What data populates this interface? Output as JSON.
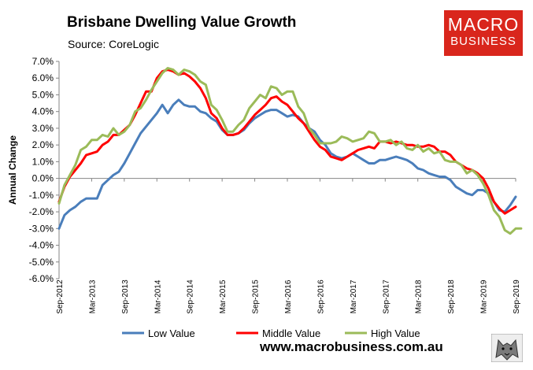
{
  "header": {
    "title": "Brisbane Dwelling Value Growth",
    "source": "Source: CoreLogic"
  },
  "logo": {
    "line1": "MACRO",
    "line2": "BUSINESS"
  },
  "footer": {
    "website": "www.macrobusiness.com.au"
  },
  "colors": {
    "low": "#4a7ebb",
    "middle": "#ff0000",
    "high": "#9bbb59"
  },
  "chart_data": {
    "type": "line",
    "title": "Brisbane Dwelling Value Growth",
    "ylabel": "Annual Change",
    "xlabel": "",
    "ylim": [
      -6,
      7
    ],
    "yticks": [
      -6,
      -5,
      -4,
      -3,
      -2,
      -1,
      0,
      1,
      2,
      3,
      4,
      5,
      6,
      7
    ],
    "ytick_labels": [
      "-6.0%",
      "-5.0%",
      "-4.0%",
      "-3.0%",
      "-2.0%",
      "-1.0%",
      "0.0%",
      "1.0%",
      "2.0%",
      "3.0%",
      "4.0%",
      "5.0%",
      "6.0%",
      "7.0%"
    ],
    "x_tick_labels": [
      "Sep-2012",
      "Mar-2013",
      "Sep-2013",
      "Mar-2014",
      "Sep-2014",
      "Mar-2015",
      "Sep-2015",
      "Mar-2016",
      "Sep-2016",
      "Mar-2017",
      "Sep-2017",
      "Mar-2018",
      "Sep-2018",
      "Mar-2019",
      "Sep-2019"
    ],
    "x_tick_positions": [
      0,
      6,
      12,
      18,
      24,
      30,
      36,
      42,
      48,
      54,
      60,
      66,
      72,
      78,
      84
    ],
    "x_max": 84,
    "grid": false,
    "legend_position": "bottom",
    "series": [
      {
        "name": "Low Value",
        "color_key": "low",
        "points": [
          [
            0,
            -3.0
          ],
          [
            1,
            -2.2
          ],
          [
            2,
            -1.9
          ],
          [
            3,
            -1.7
          ],
          [
            4,
            -1.4
          ],
          [
            5,
            -1.2
          ],
          [
            6,
            -1.2
          ],
          [
            7,
            -1.2
          ],
          [
            8,
            -0.4
          ],
          [
            9,
            -0.1
          ],
          [
            10,
            0.2
          ],
          [
            11,
            0.4
          ],
          [
            12,
            0.9
          ],
          [
            13,
            1.5
          ],
          [
            14,
            2.1
          ],
          [
            15,
            2.7
          ],
          [
            16,
            3.1
          ],
          [
            17,
            3.5
          ],
          [
            18,
            3.9
          ],
          [
            19,
            4.4
          ],
          [
            20,
            3.9
          ],
          [
            21,
            4.4
          ],
          [
            22,
            4.7
          ],
          [
            23,
            4.4
          ],
          [
            24,
            4.3
          ],
          [
            25,
            4.3
          ],
          [
            26,
            4.0
          ],
          [
            27,
            3.9
          ],
          [
            28,
            3.6
          ],
          [
            29,
            3.4
          ],
          [
            30,
            2.9
          ],
          [
            31,
            2.6
          ],
          [
            32,
            2.6
          ],
          [
            33,
            2.7
          ],
          [
            34,
            2.9
          ],
          [
            35,
            3.3
          ],
          [
            36,
            3.6
          ],
          [
            37,
            3.8
          ],
          [
            38,
            4.0
          ],
          [
            39,
            4.1
          ],
          [
            40,
            4.1
          ],
          [
            41,
            3.9
          ],
          [
            42,
            3.7
          ],
          [
            43,
            3.8
          ],
          [
            44,
            3.7
          ],
          [
            45,
            3.3
          ],
          [
            46,
            3.0
          ],
          [
            47,
            2.8
          ],
          [
            48,
            2.3
          ],
          [
            49,
            2.0
          ],
          [
            50,
            1.5
          ],
          [
            51,
            1.3
          ],
          [
            52,
            1.2
          ],
          [
            53,
            1.3
          ],
          [
            54,
            1.5
          ],
          [
            55,
            1.3
          ],
          [
            56,
            1.1
          ],
          [
            57,
            0.9
          ],
          [
            58,
            0.9
          ],
          [
            59,
            1.1
          ],
          [
            60,
            1.1
          ],
          [
            61,
            1.2
          ],
          [
            62,
            1.3
          ],
          [
            63,
            1.2
          ],
          [
            64,
            1.1
          ],
          [
            65,
            0.9
          ],
          [
            66,
            0.6
          ],
          [
            67,
            0.5
          ],
          [
            68,
            0.3
          ],
          [
            69,
            0.2
          ],
          [
            70,
            0.1
          ],
          [
            71,
            0.1
          ],
          [
            72,
            -0.1
          ],
          [
            73,
            -0.5
          ],
          [
            74,
            -0.7
          ],
          [
            75,
            -0.9
          ],
          [
            76,
            -1.0
          ],
          [
            77,
            -0.7
          ],
          [
            78,
            -0.7
          ],
          [
            79,
            -0.9
          ],
          [
            80,
            -1.4
          ],
          [
            81,
            -1.9
          ],
          [
            82,
            -2.0
          ],
          [
            83,
            -1.6
          ],
          [
            84,
            -1.1
          ]
        ]
      },
      {
        "name": "Middle Value",
        "color_key": "middle",
        "points": [
          [
            0,
            -1.4
          ],
          [
            1,
            -0.5
          ],
          [
            2,
            0.1
          ],
          [
            3,
            0.5
          ],
          [
            4,
            0.9
          ],
          [
            5,
            1.4
          ],
          [
            6,
            1.5
          ],
          [
            7,
            1.6
          ],
          [
            8,
            2.0
          ],
          [
            9,
            2.2
          ],
          [
            10,
            2.6
          ],
          [
            11,
            2.6
          ],
          [
            12,
            2.9
          ],
          [
            13,
            3.2
          ],
          [
            14,
            3.8
          ],
          [
            15,
            4.5
          ],
          [
            16,
            5.2
          ],
          [
            17,
            5.2
          ],
          [
            18,
            6.0
          ],
          [
            19,
            6.4
          ],
          [
            20,
            6.5
          ],
          [
            21,
            6.4
          ],
          [
            22,
            6.2
          ],
          [
            23,
            6.3
          ],
          [
            24,
            6.1
          ],
          [
            25,
            5.8
          ],
          [
            26,
            5.4
          ],
          [
            27,
            4.8
          ],
          [
            28,
            3.9
          ],
          [
            29,
            3.6
          ],
          [
            30,
            3.0
          ],
          [
            31,
            2.6
          ],
          [
            32,
            2.6
          ],
          [
            33,
            2.7
          ],
          [
            34,
            3.0
          ],
          [
            35,
            3.4
          ],
          [
            36,
            3.8
          ],
          [
            37,
            4.1
          ],
          [
            38,
            4.4
          ],
          [
            39,
            4.8
          ],
          [
            40,
            4.9
          ],
          [
            41,
            4.6
          ],
          [
            42,
            4.4
          ],
          [
            43,
            4.0
          ],
          [
            44,
            3.6
          ],
          [
            45,
            3.3
          ],
          [
            46,
            2.8
          ],
          [
            47,
            2.3
          ],
          [
            48,
            1.9
          ],
          [
            49,
            1.7
          ],
          [
            50,
            1.3
          ],
          [
            51,
            1.2
          ],
          [
            52,
            1.1
          ],
          [
            53,
            1.3
          ],
          [
            54,
            1.5
          ],
          [
            55,
            1.7
          ],
          [
            56,
            1.8
          ],
          [
            57,
            1.9
          ],
          [
            58,
            1.8
          ],
          [
            59,
            2.2
          ],
          [
            60,
            2.2
          ],
          [
            61,
            2.1
          ],
          [
            62,
            2.2
          ],
          [
            63,
            2.1
          ],
          [
            64,
            2.0
          ],
          [
            65,
            2.0
          ],
          [
            66,
            1.9
          ],
          [
            67,
            1.9
          ],
          [
            68,
            2.0
          ],
          [
            69,
            1.9
          ],
          [
            70,
            1.6
          ],
          [
            71,
            1.6
          ],
          [
            72,
            1.4
          ],
          [
            73,
            1.0
          ],
          [
            74,
            0.8
          ],
          [
            75,
            0.6
          ],
          [
            76,
            0.5
          ],
          [
            77,
            0.3
          ],
          [
            78,
            0.0
          ],
          [
            79,
            -0.6
          ],
          [
            80,
            -1.4
          ],
          [
            81,
            -1.8
          ],
          [
            82,
            -2.1
          ],
          [
            83,
            -1.9
          ],
          [
            84,
            -1.7
          ]
        ]
      },
      {
        "name": "High Value",
        "color_key": "high",
        "points": [
          [
            0,
            -1.5
          ],
          [
            1,
            -0.4
          ],
          [
            2,
            0.2
          ],
          [
            3,
            0.8
          ],
          [
            4,
            1.7
          ],
          [
            5,
            1.9
          ],
          [
            6,
            2.3
          ],
          [
            7,
            2.3
          ],
          [
            8,
            2.6
          ],
          [
            9,
            2.5
          ],
          [
            10,
            3.0
          ],
          [
            11,
            2.6
          ],
          [
            12,
            2.8
          ],
          [
            13,
            3.2
          ],
          [
            14,
            4.0
          ],
          [
            15,
            4.2
          ],
          [
            16,
            4.7
          ],
          [
            17,
            5.3
          ],
          [
            18,
            5.8
          ],
          [
            19,
            6.3
          ],
          [
            20,
            6.6
          ],
          [
            21,
            6.5
          ],
          [
            22,
            6.2
          ],
          [
            23,
            6.5
          ],
          [
            24,
            6.4
          ],
          [
            25,
            6.2
          ],
          [
            26,
            5.8
          ],
          [
            27,
            5.6
          ],
          [
            28,
            4.4
          ],
          [
            29,
            4.1
          ],
          [
            30,
            3.5
          ],
          [
            31,
            2.8
          ],
          [
            32,
            2.8
          ],
          [
            33,
            3.2
          ],
          [
            34,
            3.5
          ],
          [
            35,
            4.2
          ],
          [
            36,
            4.6
          ],
          [
            37,
            5.0
          ],
          [
            38,
            4.8
          ],
          [
            39,
            5.5
          ],
          [
            40,
            5.4
          ],
          [
            41,
            5.0
          ],
          [
            42,
            5.2
          ],
          [
            43,
            5.2
          ],
          [
            44,
            4.3
          ],
          [
            45,
            3.9
          ],
          [
            46,
            3.0
          ],
          [
            47,
            2.6
          ],
          [
            48,
            2.1
          ],
          [
            49,
            2.1
          ],
          [
            50,
            2.1
          ],
          [
            51,
            2.2
          ],
          [
            52,
            2.5
          ],
          [
            53,
            2.4
          ],
          [
            54,
            2.2
          ],
          [
            55,
            2.3
          ],
          [
            56,
            2.4
          ],
          [
            57,
            2.8
          ],
          [
            58,
            2.7
          ],
          [
            59,
            2.2
          ],
          [
            60,
            2.2
          ],
          [
            61,
            2.3
          ],
          [
            62,
            2.0
          ],
          [
            63,
            2.2
          ],
          [
            64,
            1.8
          ],
          [
            65,
            1.7
          ],
          [
            66,
            2.0
          ],
          [
            67,
            1.6
          ],
          [
            68,
            1.8
          ],
          [
            69,
            1.5
          ],
          [
            70,
            1.6
          ],
          [
            71,
            1.1
          ],
          [
            72,
            1.0
          ],
          [
            73,
            1.0
          ],
          [
            74,
            0.8
          ],
          [
            75,
            0.3
          ],
          [
            76,
            0.5
          ],
          [
            77,
            0.2
          ],
          [
            78,
            -0.3
          ],
          [
            79,
            -1.0
          ],
          [
            80,
            -1.9
          ],
          [
            81,
            -2.3
          ],
          [
            82,
            -3.1
          ],
          [
            83,
            -3.3
          ],
          [
            84,
            -3.0
          ],
          [
            85,
            -3.0
          ]
        ]
      }
    ]
  }
}
